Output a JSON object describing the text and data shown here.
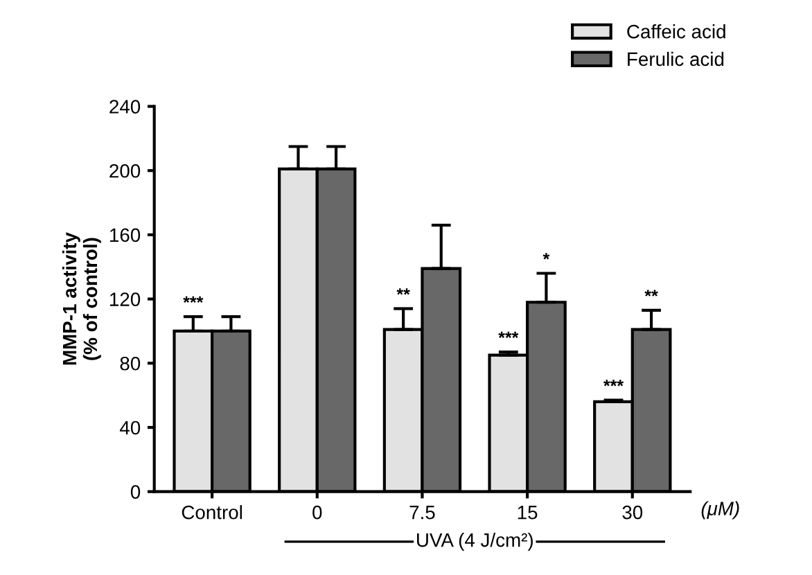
{
  "chart_data": {
    "type": "bar",
    "ylabel": "MMP-1 activity\n(% of control)",
    "categories": [
      "Control",
      "0",
      "7.5",
      "15",
      "30"
    ],
    "series": [
      {
        "name": "Caffeic acid",
        "color": "#e2e2e2",
        "values": [
          100,
          201,
          101,
          85,
          56
        ],
        "errors": [
          9,
          14,
          13,
          2,
          1
        ],
        "value_labels": [
          "***",
          null,
          "**",
          "***",
          "***"
        ]
      },
      {
        "name": "Ferulic acid",
        "color": "#686868",
        "values": [
          100,
          201,
          139,
          118,
          101
        ],
        "errors": [
          9,
          14,
          27,
          18,
          12
        ],
        "value_labels": [
          null,
          null,
          null,
          "*",
          "**"
        ]
      }
    ],
    "ylim": [
      0,
      240
    ],
    "yticks": [
      0,
      40,
      80,
      120,
      160,
      200,
      240
    ],
    "grid": false,
    "legend": "top right",
    "annotations": [
      "(μM)",
      "UVA (4 J/cm²)"
    ]
  }
}
